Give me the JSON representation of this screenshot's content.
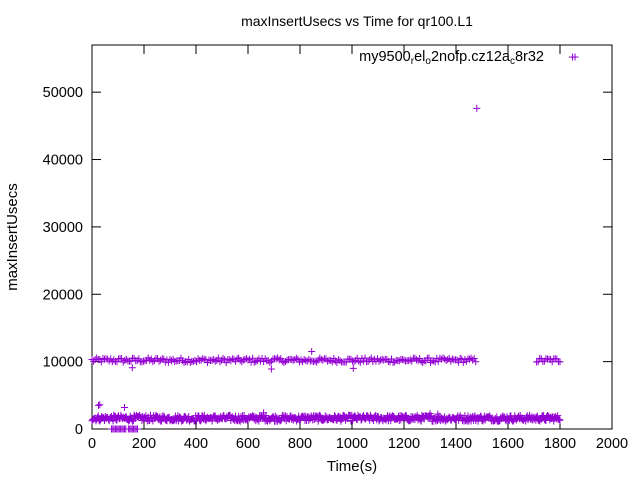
{
  "chart_data": {
    "type": "scatter",
    "title": "maxInsertUsecs vs Time for qr100.L1",
    "xlabel": "Time(s)",
    "ylabel": "maxInsertUsecs",
    "xlim": [
      0,
      2000
    ],
    "ylim": [
      0,
      57000
    ],
    "xticks": [
      "0",
      "200",
      "400",
      "600",
      "800",
      "1000",
      "1200",
      "1400",
      "1600",
      "1800",
      "2000"
    ],
    "yticks": [
      "0",
      "10000",
      "20000",
      "30000",
      "40000",
      "50000"
    ],
    "grid": false,
    "legend_position": "top-right",
    "legend": {
      "parts": [
        "my9500",
        "r",
        "el",
        "o",
        "2nofp.cz12a",
        "c",
        "8r32"
      ],
      "subscript": [
        false,
        true,
        false,
        true,
        false,
        true,
        false
      ]
    },
    "marker": "+",
    "color": "#9400d3",
    "series": [
      {
        "bands": [
          {
            "x_range": [
              0,
              1480
            ],
            "center": 10200,
            "spread": 350,
            "step": 6
          },
          {
            "x_range": [
              1710,
              1800
            ],
            "center": 10200,
            "spread": 350,
            "step": 6
          },
          {
            "x_range": [
              0,
              1800
            ],
            "center": 1600,
            "spread": 450,
            "step": 3
          }
        ],
        "points": [
          [
            1848,
            55200
          ],
          [
            1480,
            47600
          ],
          [
            845,
            11500
          ],
          [
            690,
            8900
          ],
          [
            1005,
            9000
          ],
          [
            155,
            9100
          ],
          [
            25,
            3500
          ],
          [
            30,
            3600
          ],
          [
            125,
            3200
          ],
          [
            75,
            0
          ],
          [
            80,
            0
          ],
          [
            85,
            0
          ],
          [
            90,
            0
          ],
          [
            95,
            0
          ],
          [
            100,
            0
          ],
          [
            105,
            0
          ],
          [
            110,
            0
          ],
          [
            115,
            0
          ],
          [
            120,
            0
          ],
          [
            125,
            0
          ],
          [
            130,
            0
          ],
          [
            140,
            0
          ],
          [
            145,
            0
          ],
          [
            150,
            0
          ],
          [
            155,
            0
          ],
          [
            160,
            0
          ],
          [
            165,
            0
          ],
          [
            170,
            0
          ],
          [
            175,
            0
          ],
          [
            1300,
            2300
          ],
          [
            1330,
            2200
          ],
          [
            660,
            2400
          ]
        ]
      }
    ]
  }
}
